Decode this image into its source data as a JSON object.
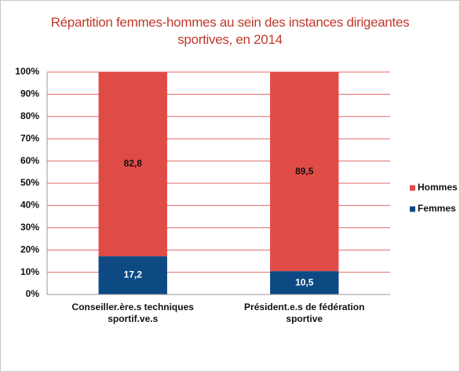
{
  "chart_data": {
    "type": "stacked_bar",
    "title": "Répartition femmes-hommes au sein des instances dirigeantes sportives, en 2014",
    "categories": [
      "Conseiller.ère.s techniques sportif.ve.s",
      "Président.e.s de fédération sportive"
    ],
    "series": [
      {
        "name": "Femmes",
        "color": "#0d4a84",
        "values": [
          17.2,
          10.5
        ],
        "value_labels": [
          "17,2",
          "10,5"
        ]
      },
      {
        "name": "Hommes",
        "color": "#e14b47",
        "values": [
          82.8,
          89.5
        ],
        "value_labels": [
          "82,8",
          "89,5"
        ]
      }
    ],
    "ylim": [
      0,
      100
    ],
    "yticks": [
      {
        "value": 0,
        "label": "0%"
      },
      {
        "value": 10,
        "label": "10%"
      },
      {
        "value": 20,
        "label": "20%"
      },
      {
        "value": 30,
        "label": "30%"
      },
      {
        "value": 40,
        "label": "40%"
      },
      {
        "value": 50,
        "label": "50%"
      },
      {
        "value": 60,
        "label": "60%"
      },
      {
        "value": 70,
        "label": "70%"
      },
      {
        "value": 80,
        "label": "80%"
      },
      {
        "value": 90,
        "label": "90%"
      },
      {
        "value": 100,
        "label": "100%"
      }
    ],
    "grid": true,
    "legend": "right"
  }
}
